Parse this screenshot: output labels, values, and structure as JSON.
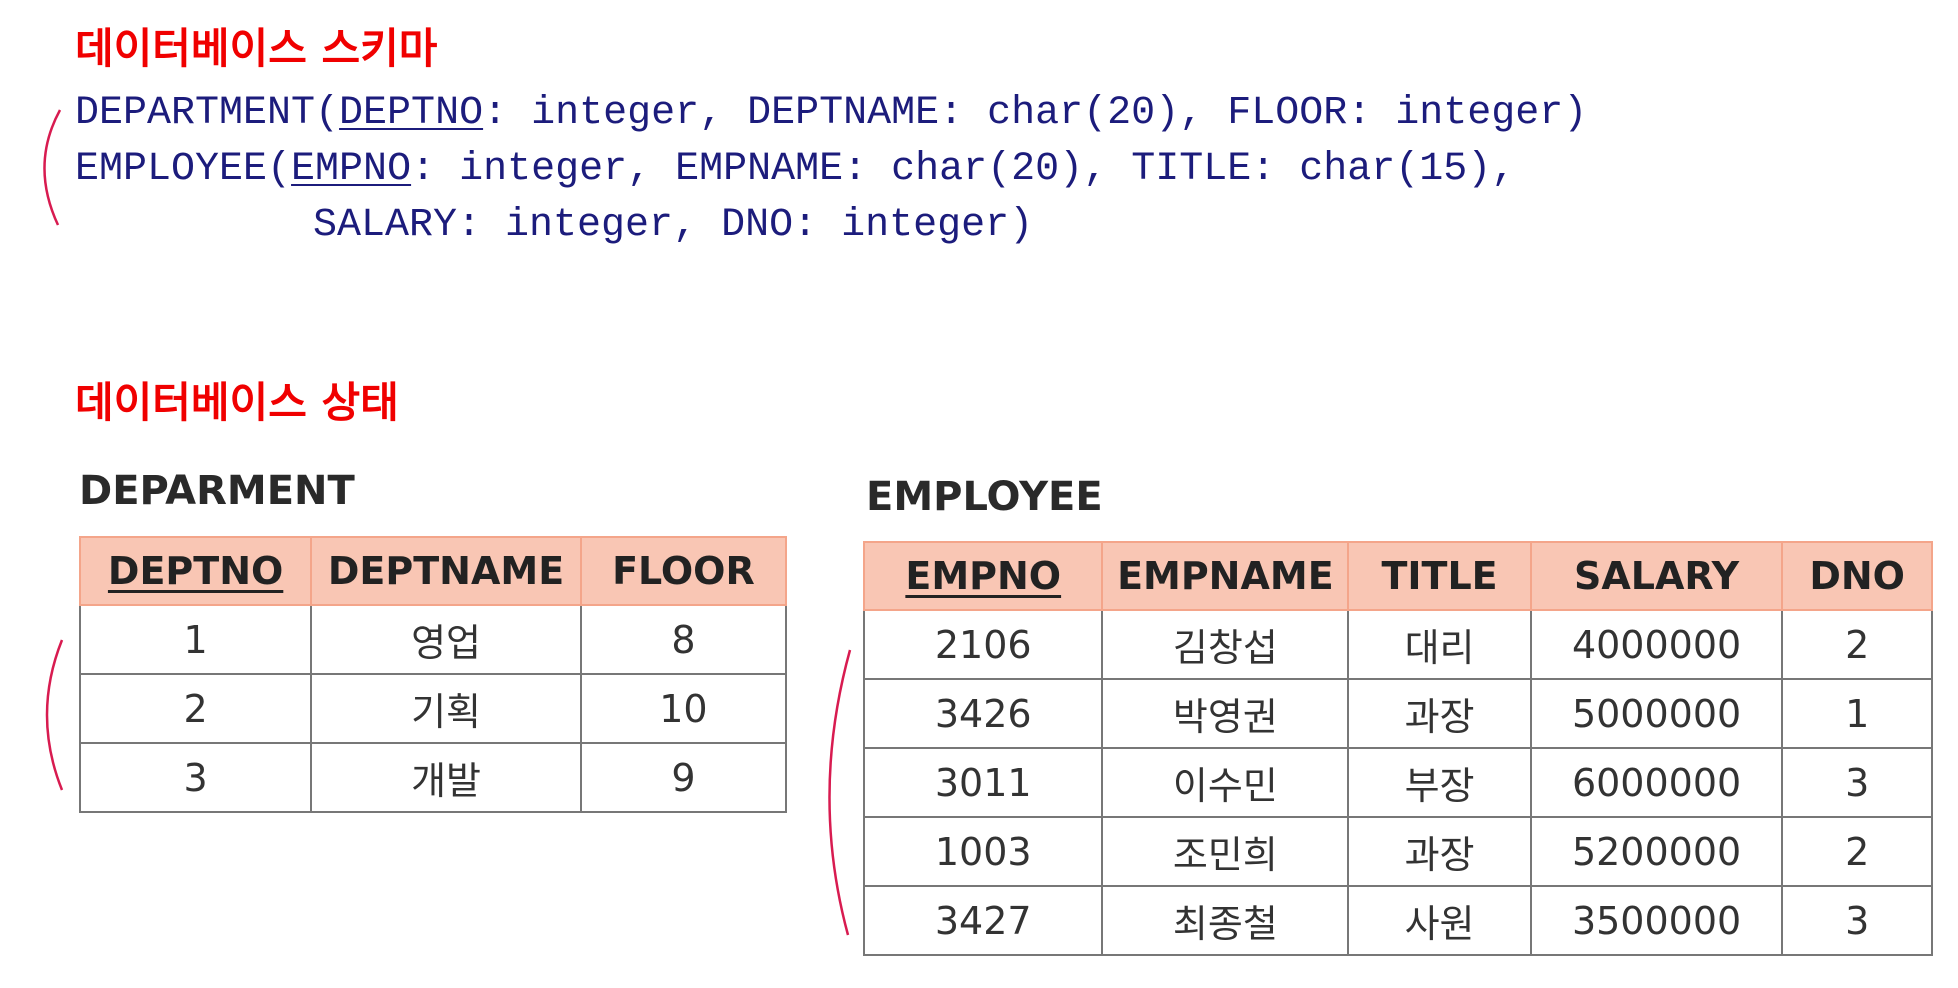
{
  "schema_title": "데이터베이스 스키마",
  "schema": {
    "department": {
      "name": "DEPARTMENT(",
      "pk": "DEPTNO",
      "rest": ": integer, DEPTNAME: char(20), FLOOR: integer)"
    },
    "employee": {
      "name": "EMPLOYEE(",
      "pk": "EMPNO",
      "rest": ": integer, EMPNAME: char(20), TITLE: char(15),",
      "rest2": "SALARY: integer, DNO: integer)"
    }
  },
  "state_title": "데이터베이스 상태",
  "department_table": {
    "label": "DEPARMENT",
    "headers": [
      "DEPTNO",
      "DEPTNAME",
      "FLOOR"
    ],
    "rows": [
      [
        "1",
        "영업",
        "8"
      ],
      [
        "2",
        "기획",
        "10"
      ],
      [
        "3",
        "개발",
        "9"
      ]
    ]
  },
  "employee_table": {
    "label": "EMPLOYEE",
    "headers": [
      "EMPNO",
      "EMPNAME",
      "TITLE",
      "SALARY",
      "DNO"
    ],
    "rows": [
      [
        "2106",
        "김창섭",
        "대리",
        "4000000",
        "2"
      ],
      [
        "3426",
        "박영권",
        "과장",
        "5000000",
        "1"
      ],
      [
        "3011",
        "이수민",
        "부장",
        "6000000",
        "3"
      ],
      [
        "1003",
        "조민희",
        "과장",
        "5200000",
        "2"
      ],
      [
        "3427",
        "최종철",
        "사원",
        "3500000",
        "3"
      ]
    ]
  },
  "colors": {
    "title": "#f00000",
    "schema_text": "#1c1c7c",
    "header_bg": "#f9c6b4",
    "bracket": "#d81b50"
  }
}
